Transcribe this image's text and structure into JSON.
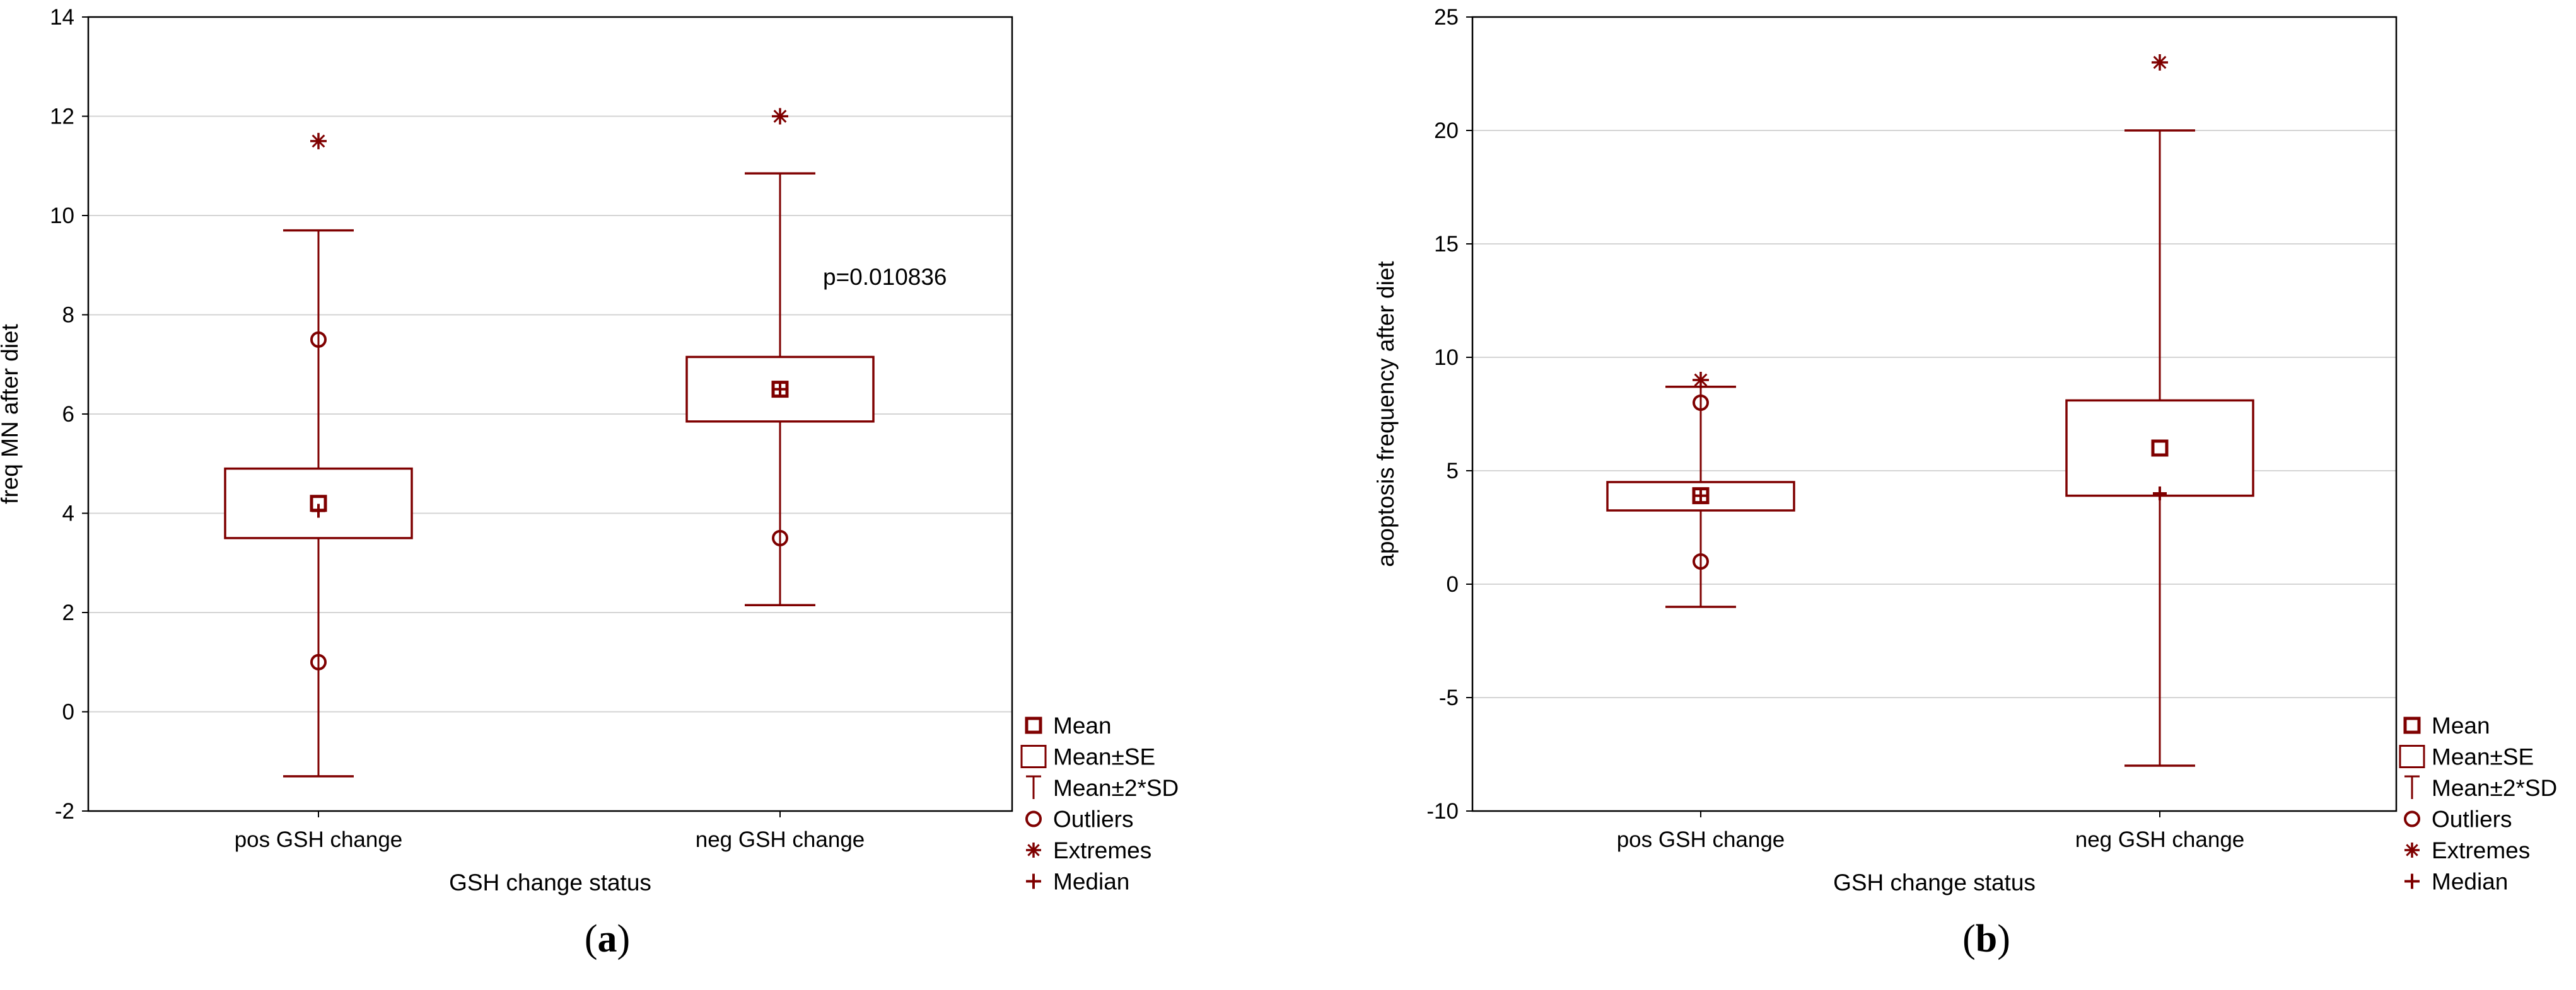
{
  "colors": {
    "series": "#7f0000",
    "grid": "#d4d4d4",
    "frame": "#000000"
  },
  "chart_data": [
    {
      "type": "box",
      "panel_label": "a",
      "title": "",
      "xlabel": "GSH change status",
      "ylabel": "freq MN after diet",
      "ylim": [
        -2,
        14
      ],
      "yticks": [
        -2,
        0,
        2,
        4,
        6,
        8,
        10,
        12,
        14
      ],
      "grid": true,
      "categories": [
        "pos GSH change",
        "neg GSH change"
      ],
      "boxes": [
        {
          "name": "pos GSH change",
          "mean": 4.2,
          "se_low": 3.5,
          "se_high": 4.9,
          "sd2_low": -1.3,
          "sd2_high": 9.7,
          "median": 4.05,
          "outliers": [
            7.5,
            1.0
          ],
          "extremes": [
            11.5
          ]
        },
        {
          "name": "neg GSH change",
          "mean": 6.5,
          "se_low": 5.85,
          "se_high": 7.15,
          "sd2_low": 2.15,
          "sd2_high": 10.85,
          "median": 6.5,
          "outliers": [
            3.5
          ],
          "extremes": [
            12.0
          ]
        }
      ],
      "annotation": "p=0.010836",
      "legend": {
        "position": "right-bottom",
        "entries": [
          "Mean",
          "Mean±SE",
          "Mean±2*SD",
          "Outliers",
          "Extremes",
          "Median"
        ]
      }
    },
    {
      "type": "box",
      "panel_label": "b",
      "title": "",
      "xlabel": "GSH change status",
      "ylabel": "apoptosis frequency after diet",
      "ylim": [
        -10,
        25
      ],
      "yticks": [
        -10,
        -5,
        0,
        5,
        10,
        15,
        20,
        25
      ],
      "grid": true,
      "categories": [
        "pos GSH change",
        "neg GSH change"
      ],
      "boxes": [
        {
          "name": "pos GSH change",
          "mean": 3.9,
          "se_low": 3.25,
          "se_high": 4.5,
          "sd2_low": -1.0,
          "sd2_high": 8.7,
          "median": 3.9,
          "outliers": [
            8.0,
            1.0
          ],
          "extremes": [
            9.0
          ]
        },
        {
          "name": "neg GSH change",
          "mean": 6.0,
          "se_low": 3.9,
          "se_high": 8.1,
          "sd2_low": -8.0,
          "sd2_high": 20.0,
          "median": 4.0,
          "outliers": [],
          "extremes": [
            23.0
          ]
        }
      ],
      "annotation": "",
      "legend": {
        "position": "right-bottom",
        "entries": [
          "Mean",
          "Mean±SE",
          "Mean±2*SD",
          "Outliers",
          "Extremes",
          "Median"
        ]
      }
    }
  ]
}
